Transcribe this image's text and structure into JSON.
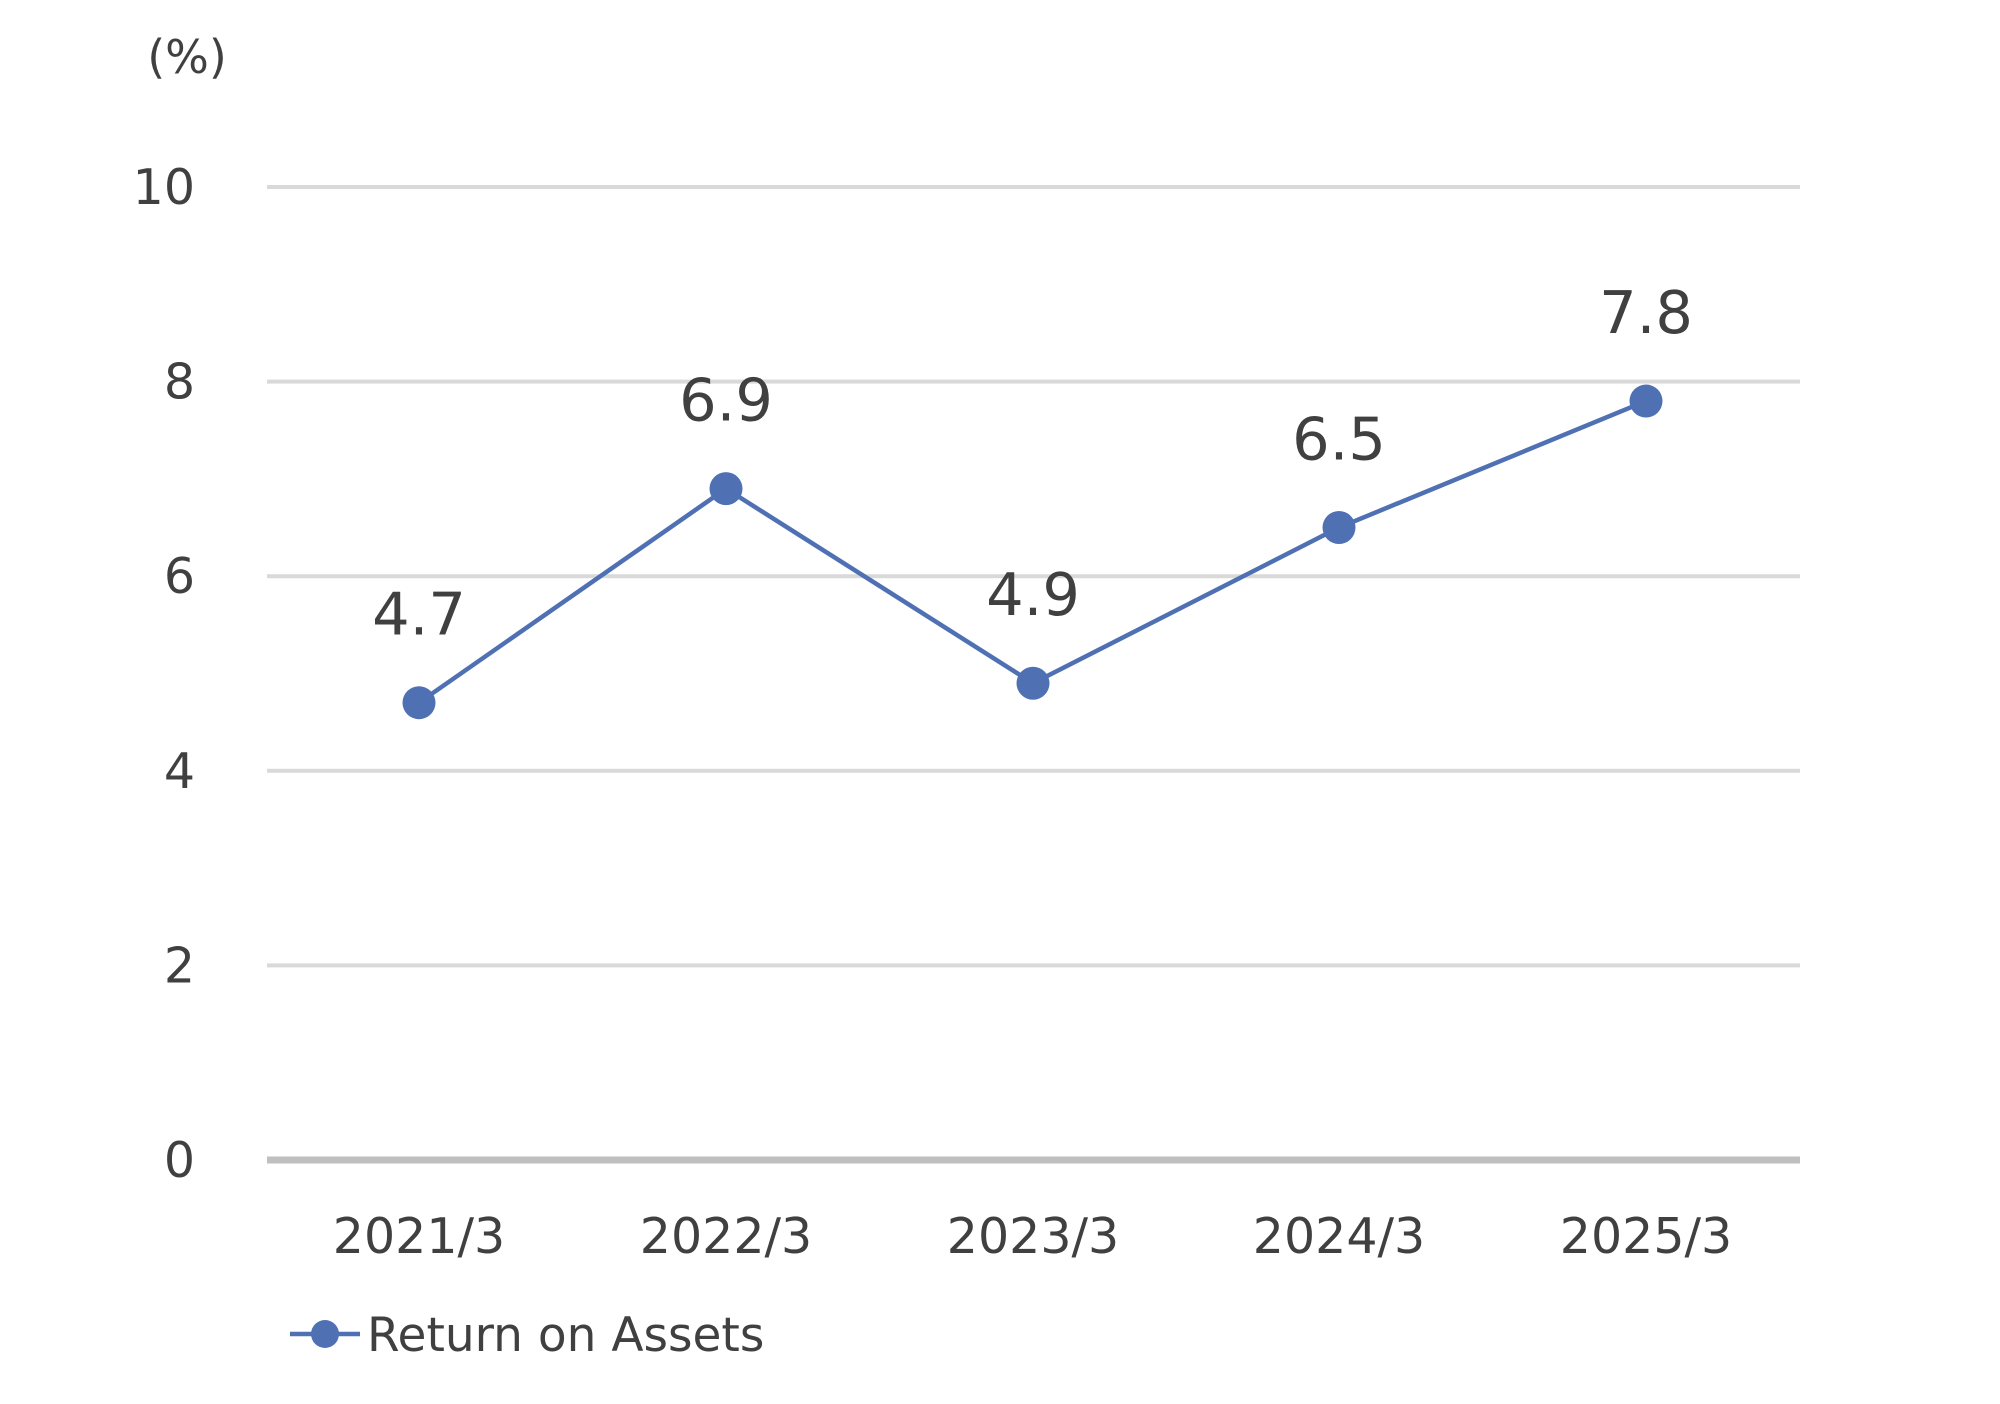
{
  "chart_data": {
    "type": "line",
    "unit_label": "(%)",
    "categories": [
      "2021/3",
      "2022/3",
      "2023/3",
      "2024/3",
      "2025/3"
    ],
    "series": [
      {
        "name": "Return on Assets",
        "values": [
          4.7,
          6.9,
          4.9,
          6.5,
          7.8
        ],
        "color": "#4f71b4"
      }
    ],
    "ylim": [
      0,
      10
    ],
    "yticks": [
      0,
      2,
      4,
      6,
      8,
      10
    ],
    "data_labels": [
      "4.7",
      "6.9",
      "4.9",
      "6.5",
      "7.8"
    ],
    "grid": true,
    "grid_color": "#d9d9d9",
    "axis_color": "#bfbfbf",
    "legend_position": "bottom-left"
  }
}
